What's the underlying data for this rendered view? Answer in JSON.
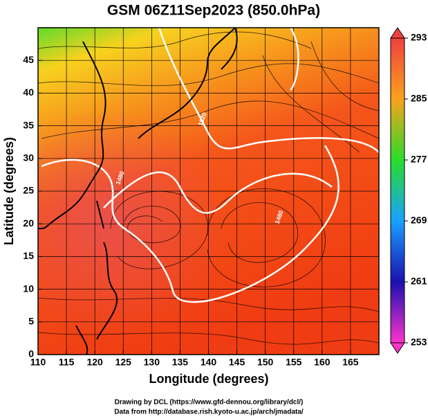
{
  "chart_data": {
    "type": "map",
    "title": "GSM 06Z11Sep2023 (850.0hPa)",
    "x_label": "Longitude (degrees)",
    "y_label": "Latitude  (degrees)",
    "xlim": [
      110,
      170
    ],
    "ylim": [
      0,
      50
    ],
    "xticks": [
      110,
      115,
      120,
      125,
      130,
      135,
      140,
      145,
      150,
      155,
      160,
      165
    ],
    "yticks": [
      0,
      5,
      10,
      15,
      20,
      25,
      30,
      35,
      40,
      45
    ],
    "grid": true,
    "colorbar": {
      "lim": [
        253,
        293
      ],
      "ticks": [
        253,
        261,
        269,
        277,
        285,
        293
      ]
    },
    "contour_labels": [
      {
        "text": "1520",
        "lon": 139,
        "lat": 36
      },
      {
        "text": "1480",
        "lon": 124.5,
        "lat": 27
      },
      {
        "text": "1480",
        "lon": 152.5,
        "lat": 21
      }
    ],
    "credits": [
      "Drawing by DCL (https://www.gfd-dennou.org/library/dcl/)",
      "Data from http://database.rish.kyoto-u.ac.jp/arch/jmadata/"
    ]
  }
}
